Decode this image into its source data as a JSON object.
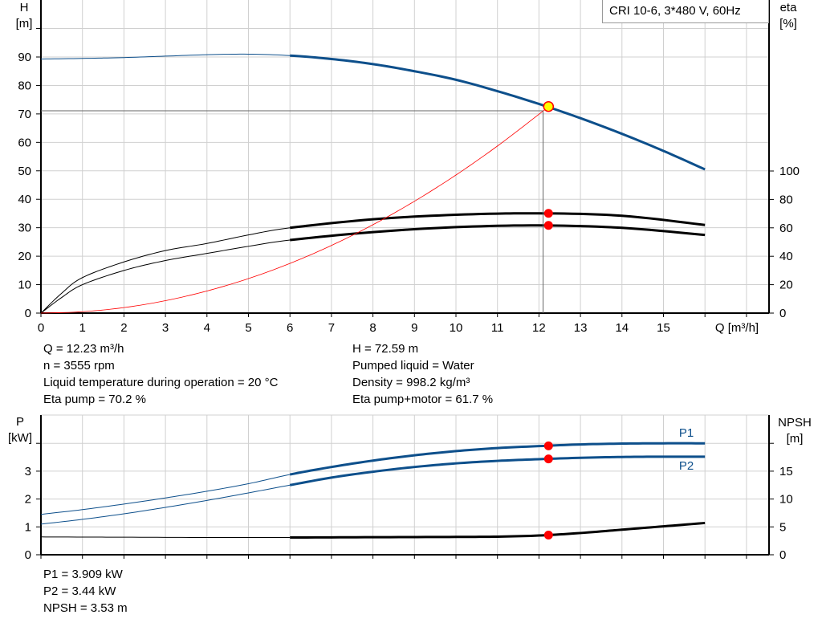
{
  "title_box": "CRI 10-6, 3*480 V, 60Hz",
  "chart_data": [
    {
      "type": "line",
      "xlabel": "Q [m³/h]",
      "ylabel": [
        "H",
        "[m]"
      ],
      "y2label": [
        "eta",
        "[%]"
      ],
      "xlim": [
        0,
        17.5
      ],
      "ylim": [
        0,
        110
      ],
      "y2lim": [
        0,
        220
      ],
      "xticks": [
        0,
        1,
        2,
        3,
        4,
        5,
        6,
        7,
        8,
        9,
        10,
        11,
        12,
        13,
        14,
        15
      ],
      "yticks": [
        0,
        10,
        20,
        30,
        40,
        50,
        60,
        70,
        80,
        90
      ],
      "y2ticks": [
        0,
        20,
        40,
        60,
        80,
        100
      ],
      "grid": true,
      "series": [
        {
          "id": "head",
          "axis": "left",
          "color": "#0d4f8b",
          "thin_until": 6,
          "x": [
            0,
            1,
            2,
            3,
            4,
            5,
            6,
            7,
            8,
            9,
            10,
            11,
            12,
            13,
            14,
            15,
            16
          ],
          "y": [
            89.3,
            89.5,
            89.8,
            90.3,
            90.8,
            91,
            90.5,
            89.3,
            87.5,
            85,
            82,
            78,
            73.5,
            68.5,
            63,
            57,
            50.5
          ]
        },
        {
          "id": "eta-pump",
          "axis": "right",
          "color": "#000000",
          "thin_until": 6,
          "x": [
            0,
            0.5,
            1,
            2,
            3,
            4,
            5,
            6,
            8,
            10,
            12,
            14,
            16
          ],
          "y": [
            0,
            14,
            25,
            36,
            44,
            49,
            55,
            60,
            66,
            69.2,
            70.2,
            68.5,
            62
          ]
        },
        {
          "id": "eta-pump-motor",
          "axis": "right",
          "color": "#000000",
          "thin_until": 6,
          "x": [
            0,
            0.5,
            1,
            2,
            3,
            4,
            5,
            6,
            8,
            10,
            12,
            14,
            16
          ],
          "y": [
            0,
            11,
            20,
            30,
            37,
            42,
            47,
            51.4,
            57,
            60.5,
            61.7,
            60,
            55
          ]
        },
        {
          "id": "system-curve",
          "axis": "left",
          "color": "#ff0000",
          "thin_until": 99,
          "x": [
            0,
            1,
            2,
            3,
            4,
            5,
            6,
            7,
            8,
            9,
            10,
            11,
            12,
            12.23
          ],
          "y": [
            0,
            0.49,
            1.94,
            4.37,
            7.77,
            12.13,
            17.47,
            23.78,
            31.06,
            39.31,
            48.53,
            58.72,
            69.88,
            72.59
          ]
        }
      ],
      "duty_point": {
        "Q": 12.23,
        "H": 72.59,
        "eta_pump": 70.2,
        "eta_pump_motor": 61.7
      }
    },
    {
      "type": "line",
      "ylabel": [
        "P",
        "[kW]"
      ],
      "y2label": [
        "NPSH",
        "[m]"
      ],
      "xlim": [
        0,
        17.5
      ],
      "ylim": [
        0,
        5
      ],
      "y2lim": [
        0,
        25
      ],
      "yticks": [
        0,
        1,
        2,
        3
      ],
      "y2ticks": [
        0,
        5,
        10,
        15
      ],
      "grid": true,
      "series": [
        {
          "id": "P1",
          "name": "P1",
          "axis": "left",
          "color": "#0d4f8b",
          "thin_until": 6,
          "x": [
            0,
            1,
            2,
            3,
            4,
            5,
            6,
            7,
            8,
            9,
            10,
            11,
            12,
            13,
            14,
            15,
            16
          ],
          "y": [
            1.45,
            1.62,
            1.82,
            2.04,
            2.28,
            2.55,
            2.88,
            3.15,
            3.38,
            3.57,
            3.72,
            3.83,
            3.9,
            3.96,
            3.99,
            4.0,
            4.0
          ]
        },
        {
          "id": "P2",
          "name": "P2",
          "axis": "left",
          "color": "#0d4f8b",
          "thin_until": 6,
          "x": [
            0,
            1,
            2,
            3,
            4,
            5,
            6,
            7,
            8,
            9,
            10,
            11,
            12,
            13,
            14,
            15,
            16
          ],
          "y": [
            1.1,
            1.27,
            1.47,
            1.7,
            1.95,
            2.22,
            2.5,
            2.77,
            2.98,
            3.15,
            3.28,
            3.37,
            3.43,
            3.48,
            3.51,
            3.52,
            3.52
          ]
        },
        {
          "id": "NPSH",
          "axis": "right",
          "color": "#000000",
          "thin_until": 6,
          "x": [
            0,
            2,
            4,
            6,
            8,
            10,
            11,
            12,
            13,
            14,
            15,
            16
          ],
          "y": [
            3.2,
            3.15,
            3.1,
            3.1,
            3.15,
            3.2,
            3.25,
            3.45,
            3.9,
            4.5,
            5.1,
            5.7
          ]
        }
      ],
      "duty_point": {
        "Q": 12.23,
        "P1": 3.909,
        "P2": 3.44,
        "NPSH": 3.53
      }
    }
  ],
  "info_top_left": [
    "Q = 12.23 m³/h",
    "n = 3555 rpm",
    "Liquid temperature during operation = 20 °C",
    "Eta pump = 70.2 %"
  ],
  "info_top_right": [
    "H = 72.59 m",
    "Pumped liquid = Water",
    "Density = 998.2 kg/m³",
    "Eta pump+motor = 61.7 %"
  ],
  "info_bottom": [
    "P1 = 3.909 kW",
    "P2 = 3.44 kW",
    "NPSH = 3.53 m"
  ],
  "colors": {
    "curve_blue": "#0d4f8b",
    "marker": "#ff0000",
    "duty_marker": "#ffff00",
    "grid": "#d0d0d0"
  }
}
